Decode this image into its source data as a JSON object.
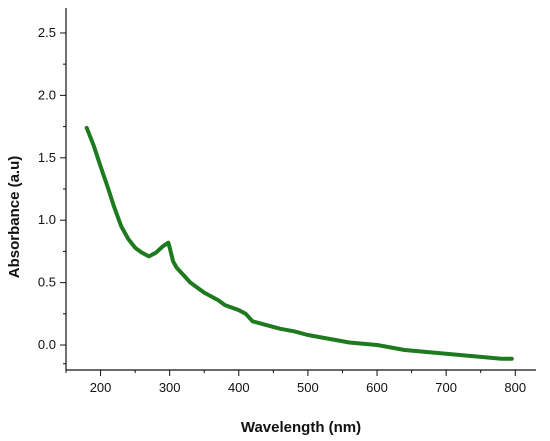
{
  "chart_data": {
    "type": "line",
    "title": "",
    "xlabel": "Wavelength (nm)",
    "ylabel": "Absorbance (a.u)",
    "xlim": [
      150,
      830
    ],
    "ylim": [
      -0.2,
      2.7
    ],
    "x_ticks": [
      200,
      300,
      400,
      500,
      600,
      700,
      800
    ],
    "x_tick_labels": [
      "200",
      "300",
      "400",
      "500",
      "600",
      "700",
      "800"
    ],
    "y_ticks": [
      0.0,
      0.5,
      1.0,
      1.5,
      2.0,
      2.5
    ],
    "y_tick_labels": [
      "0.0",
      "0.5",
      "1.0",
      "1.5",
      "2.0",
      "2.5"
    ],
    "grid": false,
    "legend": "none",
    "series": [
      {
        "color": "#1e7a1e",
        "x": [
          180,
          190,
          200,
          210,
          220,
          230,
          240,
          250,
          260,
          270,
          280,
          290,
          298,
          300,
          305,
          310,
          320,
          330,
          340,
          350,
          360,
          370,
          380,
          390,
          400,
          410,
          420,
          440,
          460,
          480,
          500,
          520,
          540,
          560,
          580,
          600,
          620,
          640,
          660,
          680,
          700,
          720,
          740,
          760,
          780,
          795
        ],
        "y": [
          1.74,
          1.6,
          1.43,
          1.27,
          1.1,
          0.95,
          0.85,
          0.78,
          0.74,
          0.71,
          0.74,
          0.79,
          0.82,
          0.78,
          0.67,
          0.62,
          0.56,
          0.5,
          0.46,
          0.42,
          0.39,
          0.36,
          0.32,
          0.3,
          0.28,
          0.25,
          0.19,
          0.16,
          0.13,
          0.11,
          0.08,
          0.06,
          0.04,
          0.02,
          0.01,
          0.0,
          -0.02,
          -0.04,
          -0.05,
          -0.06,
          -0.07,
          -0.08,
          -0.09,
          -0.1,
          -0.11,
          -0.11
        ]
      }
    ]
  }
}
